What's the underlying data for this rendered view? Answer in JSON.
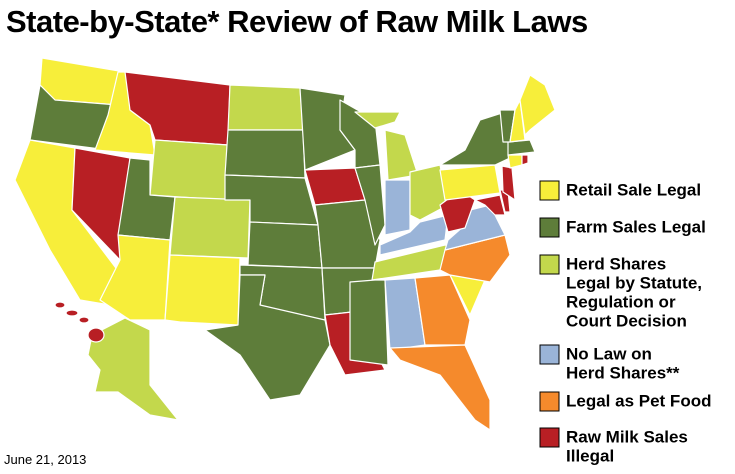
{
  "title": "State-by-State* Review of Raw Milk Laws",
  "date": "June 21, 2013",
  "legend": [
    {
      "lines": [
        "Retail Sale Legal"
      ],
      "color": "#f7ee3a"
    },
    {
      "lines": [
        "Farm Sales Legal"
      ],
      "color": "#5e7d3a"
    },
    {
      "lines": [
        "Herd Shares",
        "Legal by Statute,",
        "Regulation or",
        "Court Decision"
      ],
      "color": "#c3d84c"
    },
    {
      "lines": [
        "No Law on",
        "Herd Shares**"
      ],
      "color": "#9ab4d8"
    },
    {
      "lines": [
        "Legal as Pet Food"
      ],
      "color": "#f58a2c"
    },
    {
      "lines": [
        "Raw Milk Sales",
        "Illegal"
      ],
      "color": "#b81f24"
    }
  ]
}
